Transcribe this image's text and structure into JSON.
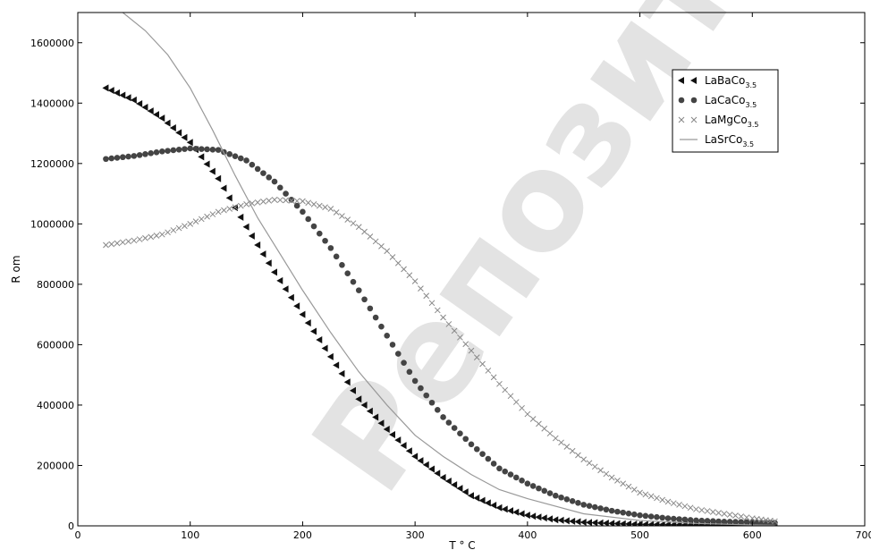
{
  "chart_data": {
    "type": "scatter",
    "title": "",
    "xlabel": "T ° C",
    "ylabel": "R om",
    "xlim": [
      0,
      700
    ],
    "ylim": [
      0,
      1700000
    ],
    "xticks": [
      0,
      100,
      200,
      300,
      400,
      500,
      600,
      700
    ],
    "xtick_labels": [
      "0",
      "100",
      "200",
      "300",
      "400",
      "500",
      "600",
      "700"
    ],
    "yticks": [
      0,
      200000,
      400000,
      600000,
      800000,
      1000000,
      1200000,
      1400000,
      1600000
    ],
    "ytick_labels": [
      "0",
      "200000",
      "400000",
      "600000",
      "800000",
      "1000000",
      "1200000",
      "1400000",
      "1600000"
    ],
    "grid": false,
    "legend_position": "upper-right",
    "series": [
      {
        "name": "LaBaCo",
        "name_subscript": "3.5",
        "marker": "triangle-left",
        "color": "#111111",
        "x": [
          25,
          50,
          75,
          100,
          125,
          150,
          175,
          200,
          225,
          250,
          275,
          300,
          325,
          350,
          375,
          400,
          425,
          450,
          475,
          500,
          525,
          550,
          575,
          600,
          620
        ],
        "y": [
          1450000,
          1410000,
          1350000,
          1270000,
          1150000,
          990000,
          840000,
          700000,
          560000,
          420000,
          320000,
          230000,
          160000,
          100000,
          60000,
          35000,
          20000,
          12000,
          8000,
          5000,
          4000,
          3000,
          2000,
          1500,
          1000
        ]
      },
      {
        "name": "LaCaCo",
        "name_subscript": "3.5",
        "marker": "circle",
        "color": "#444444",
        "x": [
          25,
          50,
          75,
          100,
          125,
          150,
          175,
          200,
          225,
          250,
          275,
          300,
          325,
          350,
          375,
          400,
          425,
          450,
          475,
          500,
          525,
          550,
          575,
          600,
          620
        ],
        "y": [
          1215000,
          1225000,
          1240000,
          1250000,
          1245000,
          1210000,
          1140000,
          1040000,
          920000,
          780000,
          630000,
          480000,
          360000,
          270000,
          190000,
          140000,
          100000,
          70000,
          50000,
          35000,
          25000,
          18000,
          14000,
          12000,
          10000
        ]
      },
      {
        "name": "LaMgCo",
        "name_subscript": "3.5",
        "marker": "x",
        "color": "#888888",
        "x": [
          25,
          50,
          75,
          100,
          125,
          150,
          175,
          200,
          225,
          250,
          275,
          300,
          325,
          350,
          375,
          400,
          425,
          450,
          475,
          500,
          525,
          550,
          575,
          600,
          620
        ],
        "y": [
          930000,
          945000,
          965000,
          1000000,
          1040000,
          1065000,
          1080000,
          1075000,
          1050000,
          990000,
          910000,
          810000,
          690000,
          580000,
          470000,
          370000,
          290000,
          220000,
          160000,
          110000,
          80000,
          55000,
          40000,
          25000,
          15000
        ]
      },
      {
        "name": "LaSrCo",
        "name_subscript": "3.5",
        "marker": "line",
        "color": "#999999",
        "x": [
          40,
          60,
          80,
          100,
          120,
          140,
          160,
          180,
          200,
          225,
          250,
          275,
          300,
          325,
          350,
          375,
          400,
          450,
          500,
          550,
          600,
          620
        ],
        "y": [
          1700000,
          1640000,
          1560000,
          1450000,
          1310000,
          1160000,
          1020000,
          900000,
          780000,
          640000,
          510000,
          400000,
          300000,
          230000,
          170000,
          120000,
          90000,
          40000,
          18000,
          8000,
          3000,
          2000
        ]
      }
    ]
  },
  "watermark": {
    "text": "Репозиторий БарГУ",
    "color": "#c8c8c8"
  }
}
